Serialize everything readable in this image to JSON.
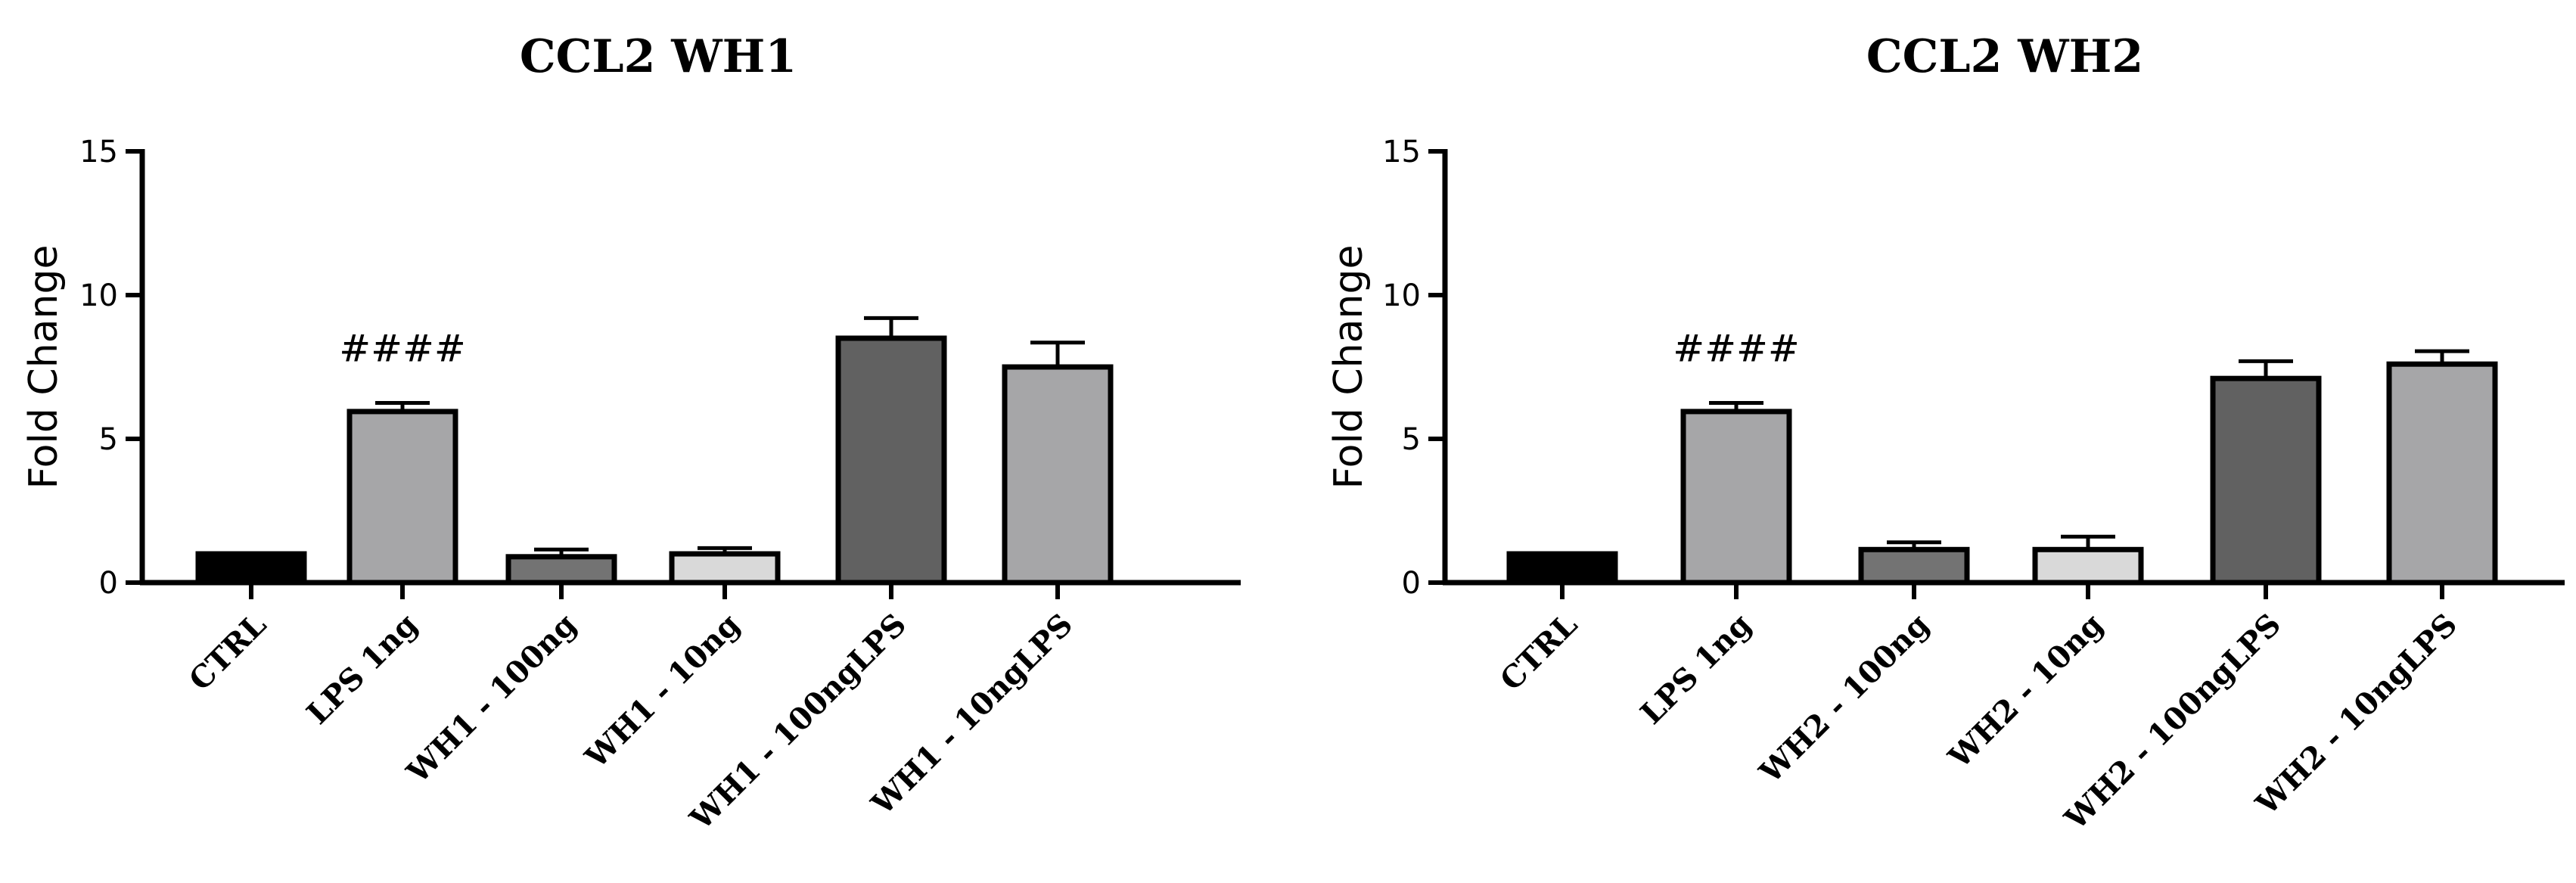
{
  "chart_data": [
    {
      "type": "bar",
      "title": "CCL2 WH1",
      "xlabel": "",
      "ylabel": "Fold Change",
      "ylim": [
        0,
        15
      ],
      "yticks": [
        0,
        5,
        10,
        15
      ],
      "grid": false,
      "categories": [
        "CTRL",
        "LPS 1ng",
        "WH1 - 100ng",
        "WH1 - 10ng",
        "WH1 - 100ngLPS",
        "WH1 - 10ngLPS"
      ],
      "values": [
        1.0,
        5.95,
        0.9,
        1.0,
        8.5,
        7.5
      ],
      "errors": [
        0,
        0.3,
        0.25,
        0.2,
        0.7,
        0.85
      ],
      "colors": [
        "#000000",
        "#a6a6a8",
        "#737373",
        "#d9d9d9",
        "#616161",
        "#a6a6a8"
      ],
      "annotations": [
        {
          "category": "LPS 1ng",
          "text": "####"
        }
      ]
    },
    {
      "type": "bar",
      "title": "CCL2 WH2",
      "xlabel": "",
      "ylabel": "Fold Change",
      "ylim": [
        0,
        15
      ],
      "yticks": [
        0,
        5,
        10,
        15
      ],
      "grid": false,
      "categories": [
        "CTRL",
        "LPS 1ng",
        "WH2 - 100ng",
        "WH2 - 10ng",
        "WH2 - 100ngLPS",
        "WH2 - 10ngLPS"
      ],
      "values": [
        1.0,
        5.95,
        1.15,
        1.15,
        7.1,
        7.6
      ],
      "errors": [
        0,
        0.3,
        0.25,
        0.45,
        0.6,
        0.45
      ],
      "colors": [
        "#000000",
        "#a6a6a8",
        "#737373",
        "#d9d9d9",
        "#616161",
        "#a6a6a8"
      ],
      "annotations": [
        {
          "category": "LPS 1ng",
          "text": "####"
        }
      ]
    }
  ]
}
